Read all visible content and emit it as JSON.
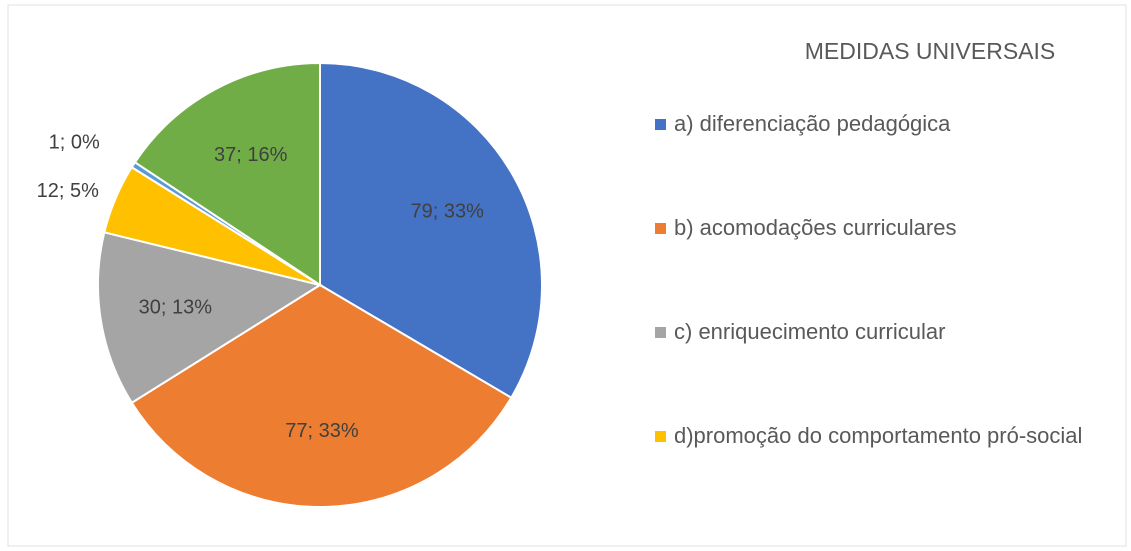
{
  "chart_data": {
    "type": "pie",
    "title": "MEDIDAS UNIVERSAIS",
    "categories": [
      "a) diferenciação pedagógica",
      "b) acomodações curriculares",
      "c) enriquecimento curricular",
      "d)promoção do comportamento pró-social",
      null,
      null
    ],
    "values": [
      79,
      77,
      30,
      12,
      1,
      37
    ],
    "value_labels": [
      "79; 33%",
      "77; 33%",
      "30; 13%",
      "12; 5%",
      "1; 0%",
      "37; 16%"
    ],
    "colors": [
      "#4472c4",
      "#ed7d31",
      "#a5a5a5",
      "#ffc000",
      "#5b9bd5",
      "#70ad47"
    ],
    "legend": "right"
  }
}
